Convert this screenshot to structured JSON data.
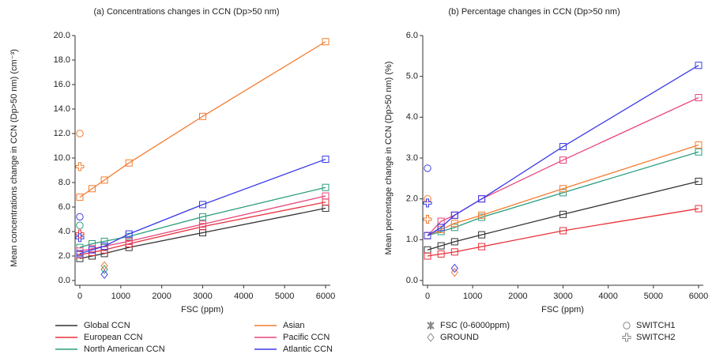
{
  "chart_data": [
    {
      "type": "scatter",
      "title": "(a) Concentrations changes in CCN (Dp>50 nm)",
      "x_label": "FSC (ppm)",
      "y_label": "Mean concentrations change in CCN (Dp>50 nm) (cm⁻³)",
      "x": [
        0,
        300,
        600,
        1200,
        3000,
        6000
      ],
      "ground_x": 600,
      "switch_x": 0,
      "xlim": [
        0,
        6000
      ],
      "xticks": [
        0,
        1000,
        2000,
        3000,
        4000,
        5000,
        6000
      ],
      "ylim": [
        0,
        20
      ],
      "yticks": [
        {
          "value": 0,
          "label": "0.0"
        },
        {
          "value": 2,
          "label": "2.0"
        },
        {
          "value": 4,
          "label": "4.0"
        },
        {
          "value": 6,
          "label": "6.0"
        },
        {
          "value": 8,
          "label": "8.0"
        },
        {
          "value": 10,
          "label": "10.0"
        },
        {
          "value": 12,
          "label": "12.0"
        },
        {
          "value": 14,
          "label": "14.0"
        },
        {
          "value": 16,
          "label": "16.0"
        },
        {
          "value": 18,
          "label": "18.0"
        },
        {
          "value": 20,
          "label": "20.0"
        }
      ],
      "series": [
        {
          "name": "Global CCN",
          "color": "#333333",
          "values": [
            1.8,
            2.0,
            2.2,
            2.7,
            3.9,
            5.9
          ],
          "ground": null,
          "switch1": null,
          "switch2": null
        },
        {
          "name": "European CCN",
          "color": "#e8303a",
          "values": [
            2.1,
            2.3,
            2.5,
            3.0,
            4.4,
            6.4
          ],
          "ground": null,
          "switch1": null,
          "switch2": 3.8
        },
        {
          "name": "North American CCN",
          "color": "#2a9d7e",
          "values": [
            2.7,
            3.0,
            3.2,
            3.6,
            5.2,
            7.6
          ],
          "ground": 0.9,
          "switch1": 4.5,
          "switch2": null
        },
        {
          "name": "Asian",
          "color": "#f47c30",
          "values": [
            6.8,
            7.5,
            8.2,
            9.6,
            13.4,
            19.5
          ],
          "ground": 1.2,
          "switch1": 12.0,
          "switch2": 9.3
        },
        {
          "name": "Pacific CCN",
          "color": "#e8457a",
          "values": [
            2.4,
            2.6,
            2.8,
            3.2,
            4.6,
            6.9
          ],
          "ground": null,
          "switch1": null,
          "switch2": null
        },
        {
          "name": "Atlantic CCN",
          "color": "#3b3be8",
          "values": [
            2.2,
            2.5,
            2.8,
            3.8,
            6.2,
            9.9
          ],
          "ground": 0.5,
          "switch1": 5.2,
          "switch2": 3.5
        }
      ]
    },
    {
      "type": "scatter",
      "title": "(b) Percentage changes in CCN (Dp>50 nm)",
      "x_label": "FSC (ppm)",
      "y_label": "Mean percentage change in CCN (Dp>50 nm) (%)",
      "x": [
        0,
        300,
        600,
        1200,
        3000,
        6000
      ],
      "ground_x": 600,
      "switch_x": 0,
      "xlim": [
        0,
        6000
      ],
      "xticks": [
        0,
        1000,
        2000,
        3000,
        4000,
        5000,
        6000
      ],
      "ylim": [
        0,
        6
      ],
      "yticks": [
        {
          "value": 0,
          "label": "0.0"
        },
        {
          "value": 1,
          "label": "1.0"
        },
        {
          "value": 2,
          "label": "2.0"
        },
        {
          "value": 3,
          "label": "3.0"
        },
        {
          "value": 4,
          "label": "4.0"
        },
        {
          "value": 5,
          "label": "5.0"
        },
        {
          "value": 6,
          "label": "6.0"
        }
      ],
      "marker_types": [
        "FSC (0-6000ppm)",
        "GROUND",
        "SWITCH1",
        "SWITCH2"
      ],
      "series": [
        {
          "color": "#333333",
          "values": [
            0.75,
            0.85,
            0.95,
            1.12,
            1.62,
            2.43
          ],
          "ground": null,
          "switch1": null,
          "switch2": null
        },
        {
          "color": "#e8303a",
          "values": [
            0.6,
            0.65,
            0.7,
            0.83,
            1.22,
            1.76
          ],
          "ground": null,
          "switch1": null,
          "switch2": null
        },
        {
          "color": "#2a9d7e",
          "values": [
            1.1,
            1.2,
            1.3,
            1.55,
            2.15,
            3.15
          ],
          "ground": null,
          "switch1": null,
          "switch2": null
        },
        {
          "color": "#f47c30",
          "values": [
            1.1,
            1.25,
            1.4,
            1.6,
            2.25,
            3.32
          ],
          "ground": 0.2,
          "switch1": 2.0,
          "switch2": 1.5
        },
        {
          "color": "#e8457a",
          "values": [
            1.1,
            1.45,
            1.6,
            2.0,
            2.95,
            4.48
          ],
          "ground": null,
          "switch1": null,
          "switch2": null
        },
        {
          "color": "#3b3be8",
          "values": [
            1.1,
            1.3,
            1.6,
            2.0,
            3.28,
            5.27
          ],
          "ground": 0.3,
          "switch1": 2.75,
          "switch2": 1.9
        }
      ]
    }
  ]
}
